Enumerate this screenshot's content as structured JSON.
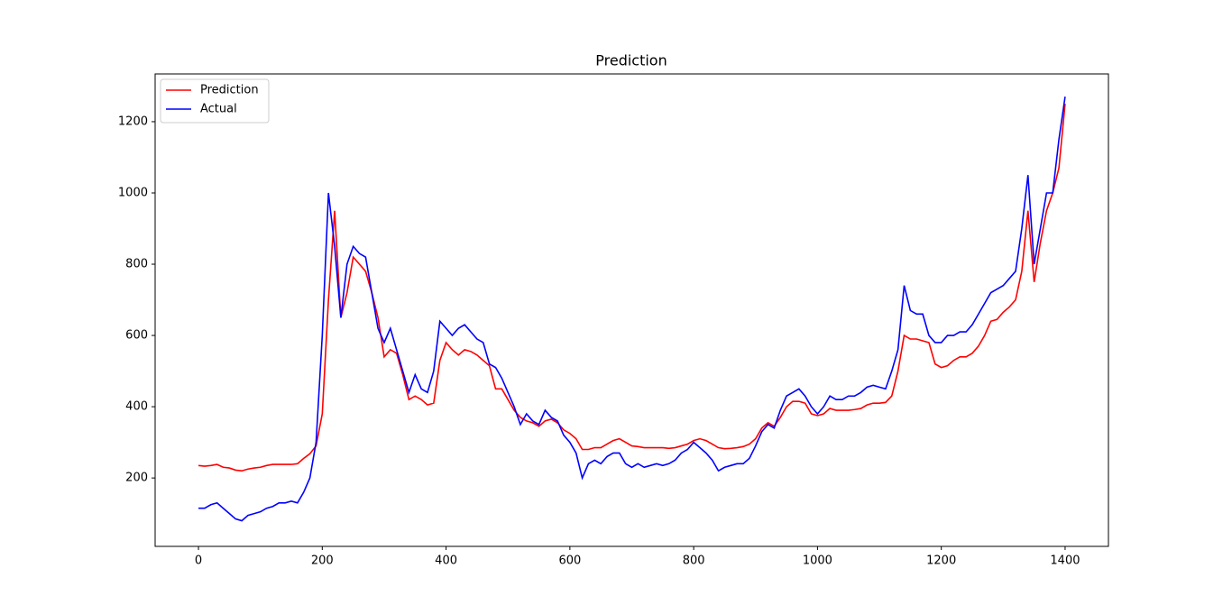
{
  "chart_data": {
    "type": "line",
    "title": "Prediction",
    "x": [
      0,
      10,
      20,
      30,
      40,
      50,
      60,
      70,
      80,
      90,
      100,
      110,
      120,
      130,
      140,
      150,
      160,
      170,
      180,
      190,
      200,
      210,
      220,
      230,
      240,
      250,
      260,
      270,
      280,
      290,
      300,
      310,
      320,
      330,
      340,
      350,
      360,
      370,
      380,
      390,
      400,
      410,
      420,
      430,
      440,
      450,
      460,
      470,
      480,
      490,
      500,
      510,
      520,
      530,
      540,
      550,
      560,
      570,
      580,
      590,
      600,
      610,
      620,
      630,
      640,
      650,
      660,
      670,
      680,
      690,
      700,
      710,
      720,
      730,
      740,
      750,
      760,
      770,
      780,
      790,
      800,
      810,
      820,
      830,
      840,
      850,
      860,
      870,
      880,
      890,
      900,
      910,
      920,
      930,
      940,
      950,
      960,
      970,
      980,
      990,
      1000,
      1010,
      1020,
      1030,
      1040,
      1050,
      1060,
      1070,
      1080,
      1090,
      1100,
      1110,
      1120,
      1130,
      1140,
      1150,
      1160,
      1170,
      1180,
      1190,
      1200,
      1210,
      1220,
      1230,
      1240,
      1250,
      1260,
      1270,
      1280,
      1290,
      1300,
      1310,
      1320,
      1330,
      1340,
      1350,
      1360,
      1370,
      1380,
      1390,
      1400
    ],
    "series": [
      {
        "name": "Prediction",
        "color": "#ff0000",
        "values": [
          235,
          233,
          235,
          238,
          230,
          228,
          222,
          220,
          225,
          228,
          230,
          235,
          238,
          238,
          238,
          238,
          240,
          255,
          268,
          290,
          380,
          700,
          950,
          650,
          720,
          820,
          800,
          780,
          720,
          650,
          540,
          560,
          550,
          490,
          420,
          430,
          420,
          405,
          410,
          530,
          580,
          560,
          545,
          560,
          555,
          545,
          530,
          515,
          450,
          450,
          420,
          390,
          370,
          360,
          355,
          345,
          360,
          365,
          355,
          335,
          325,
          310,
          280,
          280,
          285,
          285,
          295,
          305,
          310,
          300,
          290,
          288,
          285,
          285,
          285,
          285,
          283,
          285,
          290,
          295,
          305,
          310,
          305,
          295,
          285,
          282,
          283,
          285,
          288,
          295,
          310,
          340,
          355,
          345,
          370,
          400,
          415,
          415,
          410,
          380,
          375,
          380,
          395,
          390,
          390,
          390,
          392,
          395,
          405,
          410,
          410,
          412,
          430,
          500,
          600,
          590,
          590,
          585,
          580,
          520,
          510,
          515,
          530,
          540,
          540,
          550,
          570,
          600,
          640,
          645,
          665,
          680,
          700,
          780,
          950,
          750,
          860,
          950,
          1000,
          1070,
          1250
        ]
      },
      {
        "name": "Actual",
        "color": "#0000ff",
        "values": [
          115,
          115,
          125,
          130,
          115,
          100,
          85,
          80,
          95,
          100,
          105,
          115,
          120,
          130,
          130,
          135,
          130,
          160,
          200,
          300,
          600,
          1000,
          850,
          650,
          800,
          850,
          830,
          820,
          720,
          620,
          580,
          620,
          560,
          500,
          440,
          490,
          450,
          440,
          500,
          640,
          620,
          600,
          620,
          630,
          610,
          590,
          580,
          520,
          510,
          480,
          440,
          400,
          350,
          380,
          360,
          350,
          390,
          370,
          360,
          320,
          300,
          270,
          200,
          240,
          250,
          240,
          260,
          270,
          270,
          240,
          230,
          240,
          230,
          235,
          240,
          235,
          240,
          250,
          270,
          280,
          300,
          285,
          270,
          250,
          220,
          230,
          235,
          240,
          240,
          255,
          290,
          330,
          350,
          340,
          390,
          430,
          440,
          450,
          430,
          400,
          380,
          400,
          430,
          420,
          420,
          430,
          430,
          440,
          455,
          460,
          455,
          450,
          500,
          560,
          740,
          670,
          660,
          660,
          600,
          580,
          580,
          600,
          600,
          610,
          610,
          630,
          660,
          690,
          720,
          730,
          740,
          760,
          780,
          900,
          1050,
          800,
          900,
          1000,
          1000,
          1150,
          1270
        ]
      }
    ],
    "xlim": [
      -70,
      1470
    ],
    "ylim": [
      8,
      1334
    ],
    "xticks": [
      0,
      200,
      400,
      600,
      800,
      1000,
      1200,
      1400
    ],
    "yticks": [
      200,
      400,
      600,
      800,
      1000,
      1200
    ],
    "legend": "upper left"
  }
}
